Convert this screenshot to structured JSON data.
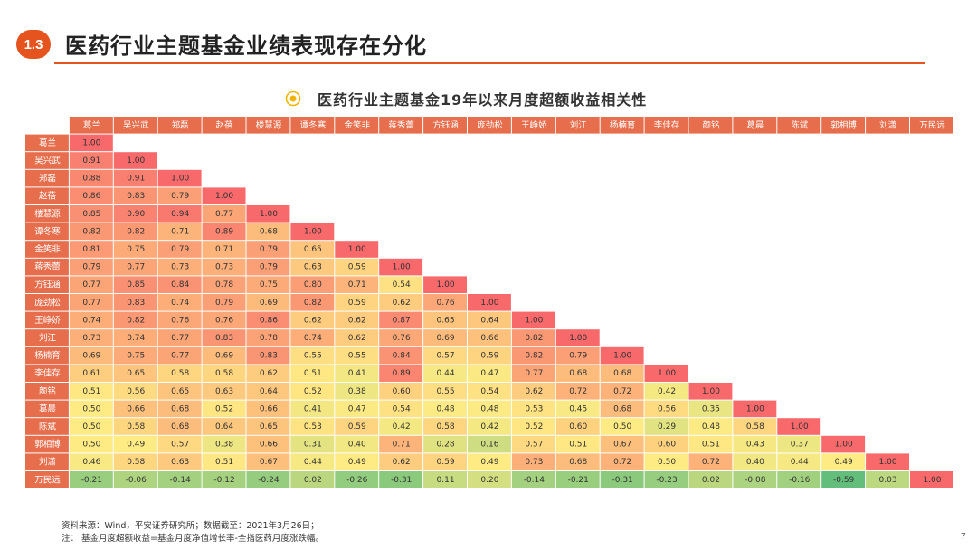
{
  "section": {
    "number": "1.3",
    "title": "医药行业主题基金业绩表现存在分化"
  },
  "chart_title": "医药行业主题基金19年以来月度超额收益相关性",
  "footnotes": {
    "source": "资料来源：Wind，平安证券研究所；数据截至：2021年3月26日；",
    "note": "注：  基金月度超额收益=基金月度净值增长率-全指医药月度涨跌幅。"
  },
  "page_number": "7",
  "colors": {
    "accent": "#e5531f",
    "header_bg": "#e66e4c",
    "low": "#63be7b",
    "mid": "#ffeb84",
    "high": "#f8696b"
  },
  "chart_data": {
    "type": "heatmap",
    "title": "医药行业主题基金19年以来月度超额收益相关性",
    "labels": [
      "葛兰",
      "吴兴武",
      "郑磊",
      "赵蓓",
      "楼慧源",
      "谭冬寒",
      "金笑非",
      "蒋秀蕾",
      "方钰涵",
      "庞劲松",
      "王峥娇",
      "刘江",
      "杨楠育",
      "李佳存",
      "颜铭",
      "葛晨",
      "陈斌",
      "郭相博",
      "刘潇",
      "万民远"
    ],
    "matrix": [
      [
        1.0
      ],
      [
        0.91,
        1.0
      ],
      [
        0.88,
        0.91,
        1.0
      ],
      [
        0.86,
        0.83,
        0.79,
        1.0
      ],
      [
        0.85,
        0.9,
        0.94,
        0.77,
        1.0
      ],
      [
        0.82,
        0.82,
        0.71,
        0.89,
        0.68,
        1.0
      ],
      [
        0.81,
        0.75,
        0.79,
        0.71,
        0.79,
        0.65,
        1.0
      ],
      [
        0.79,
        0.77,
        0.73,
        0.73,
        0.79,
        0.63,
        0.59,
        1.0
      ],
      [
        0.77,
        0.85,
        0.84,
        0.78,
        0.75,
        0.8,
        0.71,
        0.54,
        1.0
      ],
      [
        0.77,
        0.83,
        0.74,
        0.79,
        0.69,
        0.82,
        0.59,
        0.62,
        0.76,
        1.0
      ],
      [
        0.74,
        0.82,
        0.76,
        0.76,
        0.86,
        0.62,
        0.62,
        0.87,
        0.65,
        0.64,
        1.0
      ],
      [
        0.73,
        0.74,
        0.77,
        0.83,
        0.78,
        0.74,
        0.62,
        0.76,
        0.69,
        0.66,
        0.82,
        1.0
      ],
      [
        0.69,
        0.75,
        0.77,
        0.69,
        0.83,
        0.55,
        0.55,
        0.84,
        0.57,
        0.59,
        0.82,
        0.79,
        1.0
      ],
      [
        0.61,
        0.65,
        0.58,
        0.58,
        0.62,
        0.51,
        0.41,
        0.89,
        0.44,
        0.47,
        0.77,
        0.68,
        0.68,
        1.0
      ],
      [
        0.51,
        0.56,
        0.65,
        0.63,
        0.64,
        0.52,
        0.38,
        0.6,
        0.55,
        0.54,
        0.62,
        0.72,
        0.72,
        0.42,
        1.0
      ],
      [
        0.5,
        0.66,
        0.68,
        0.52,
        0.66,
        0.41,
        0.47,
        0.54,
        0.48,
        0.48,
        0.53,
        0.45,
        0.68,
        0.56,
        0.35,
        1.0
      ],
      [
        0.5,
        0.58,
        0.68,
        0.64,
        0.65,
        0.53,
        0.59,
        0.42,
        0.58,
        0.42,
        0.52,
        0.6,
        0.5,
        0.29,
        0.48,
        0.58,
        1.0
      ],
      [
        0.5,
        0.49,
        0.57,
        0.38,
        0.66,
        0.31,
        0.4,
        0.71,
        0.28,
        0.16,
        0.57,
        0.51,
        0.67,
        0.6,
        0.51,
        0.43,
        0.37,
        1.0
      ],
      [
        0.46,
        0.58,
        0.63,
        0.51,
        0.67,
        0.44,
        0.49,
        0.62,
        0.59,
        0.49,
        0.73,
        0.68,
        0.72,
        0.5,
        0.72,
        0.4,
        0.44,
        0.49,
        1.0
      ],
      [
        -0.21,
        -0.06,
        -0.14,
        -0.12,
        -0.24,
        0.02,
        -0.26,
        -0.31,
        0.11,
        0.2,
        -0.14,
        -0.21,
        -0.31,
        -0.23,
        0.02,
        -0.08,
        -0.16,
        -0.59,
        0.03,
        1.0
      ]
    ],
    "color_scale": {
      "min": -0.59,
      "mid": 0.5,
      "max": 1.0
    }
  }
}
